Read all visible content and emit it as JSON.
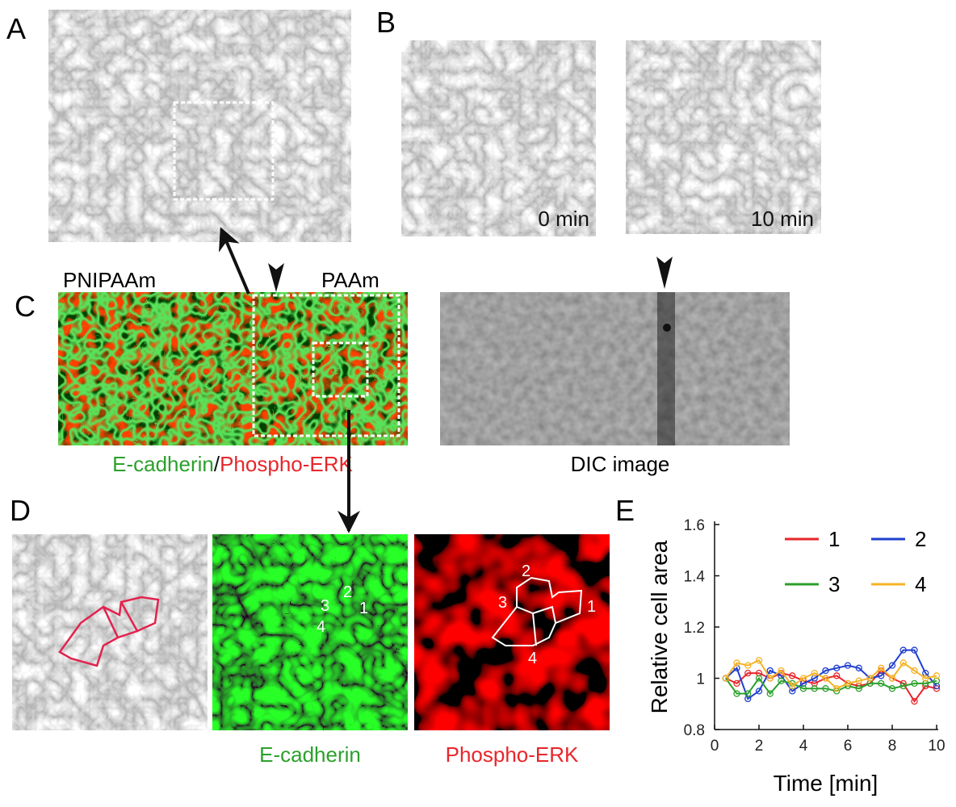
{
  "panel_a": {
    "letter": "A"
  },
  "panel_b": {
    "letter": "B",
    "images": [
      {
        "time": "0 min"
      },
      {
        "time": "10 min"
      }
    ]
  },
  "panel_c": {
    "letter": "C",
    "left_region": "PNIPAAm",
    "right_region": "PAAm",
    "caption_green": "E-cadherin",
    "caption_separator": "/",
    "caption_red": "Phospho-ERK",
    "dic_caption": "DIC image"
  },
  "panel_d": {
    "letter": "D",
    "green_cell_labels": [
      "2",
      "3",
      "1",
      "4"
    ],
    "red_cell_labels": [
      "2",
      "3",
      "1",
      "4"
    ],
    "caption_green": "E-cadherin",
    "caption_red": "Phospho-ERK"
  },
  "panel_e": {
    "letter": "E"
  },
  "chart_data": {
    "type": "line",
    "x_label": "Time [min]",
    "y_label": "Relative cell area",
    "x": [
      0.5,
      1,
      1.5,
      2,
      2.5,
      3,
      3.5,
      4,
      4.5,
      5,
      5.5,
      6,
      6.5,
      7,
      7.5,
      8,
      8.5,
      9,
      9.5,
      10
    ],
    "series": [
      {
        "name": "1",
        "color": "#e8262b",
        "values": [
          1.0,
          0.98,
          1.02,
          1.02,
          1.0,
          1.02,
          1.01,
          0.99,
          0.98,
          1.0,
          1.01,
          0.98,
          0.97,
          0.98,
          1.03,
          1.0,
          0.98,
          0.91,
          0.97,
          0.96
        ]
      },
      {
        "name": "2",
        "color": "#1f3fcf",
        "values": [
          1.0,
          1.04,
          0.92,
          0.95,
          1.03,
          1.01,
          0.95,
          0.98,
          1.0,
          1.03,
          1.04,
          1.05,
          1.04,
          1.0,
          1.01,
          1.05,
          1.11,
          1.11,
          1.02,
          0.97
        ]
      },
      {
        "name": "3",
        "color": "#2ca02c",
        "values": [
          1.0,
          0.94,
          0.94,
          1.0,
          0.94,
          0.99,
          0.98,
          0.96,
          0.96,
          0.96,
          0.95,
          0.97,
          0.96,
          0.98,
          0.98,
          0.96,
          0.97,
          0.98,
          0.98,
          0.99
        ]
      },
      {
        "name": "4",
        "color": "#f5b324",
        "values": [
          1.0,
          1.06,
          1.05,
          1.07,
          1.0,
          1.03,
          0.97,
          1.0,
          1.02,
          1.0,
          0.96,
          0.98,
          0.99,
          1.0,
          1.04,
          1.0,
          1.06,
          1.03,
          1.0,
          1.01
        ]
      }
    ],
    "xlim": [
      0,
      10
    ],
    "xticks": [
      0,
      2,
      4,
      6,
      8,
      10
    ],
    "ylim": [
      0.8,
      1.6
    ],
    "yticks": [
      0.8,
      1,
      1.2,
      1.4,
      1.6
    ],
    "markers": "open-circle",
    "grid": false
  }
}
